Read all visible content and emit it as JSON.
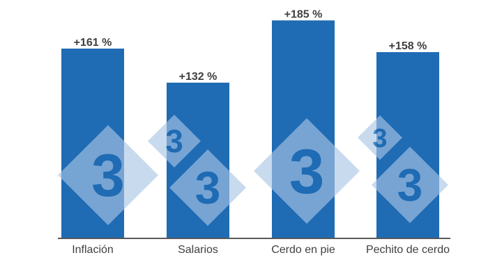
{
  "chart_data": {
    "type": "bar",
    "categories": [
      "Inflación",
      "Salarios",
      "Cerdo en pie",
      "Pechito de cerdo"
    ],
    "values": [
      161,
      132,
      185,
      158
    ],
    "value_labels": [
      "+161 %",
      "+132 %",
      "+185 %",
      "+158 %"
    ],
    "ylim": [
      0,
      200
    ],
    "grid": false
  },
  "colors": {
    "bar": "#1f6bb4",
    "axis": "#595959",
    "value_text": "#404040",
    "category_text": "#404040",
    "watermark_diamond": "#a9c6e4",
    "watermark_digit": "#1f6bb4"
  },
  "watermark": {
    "icon": "logo-3-diamond-icon",
    "text": "3"
  }
}
